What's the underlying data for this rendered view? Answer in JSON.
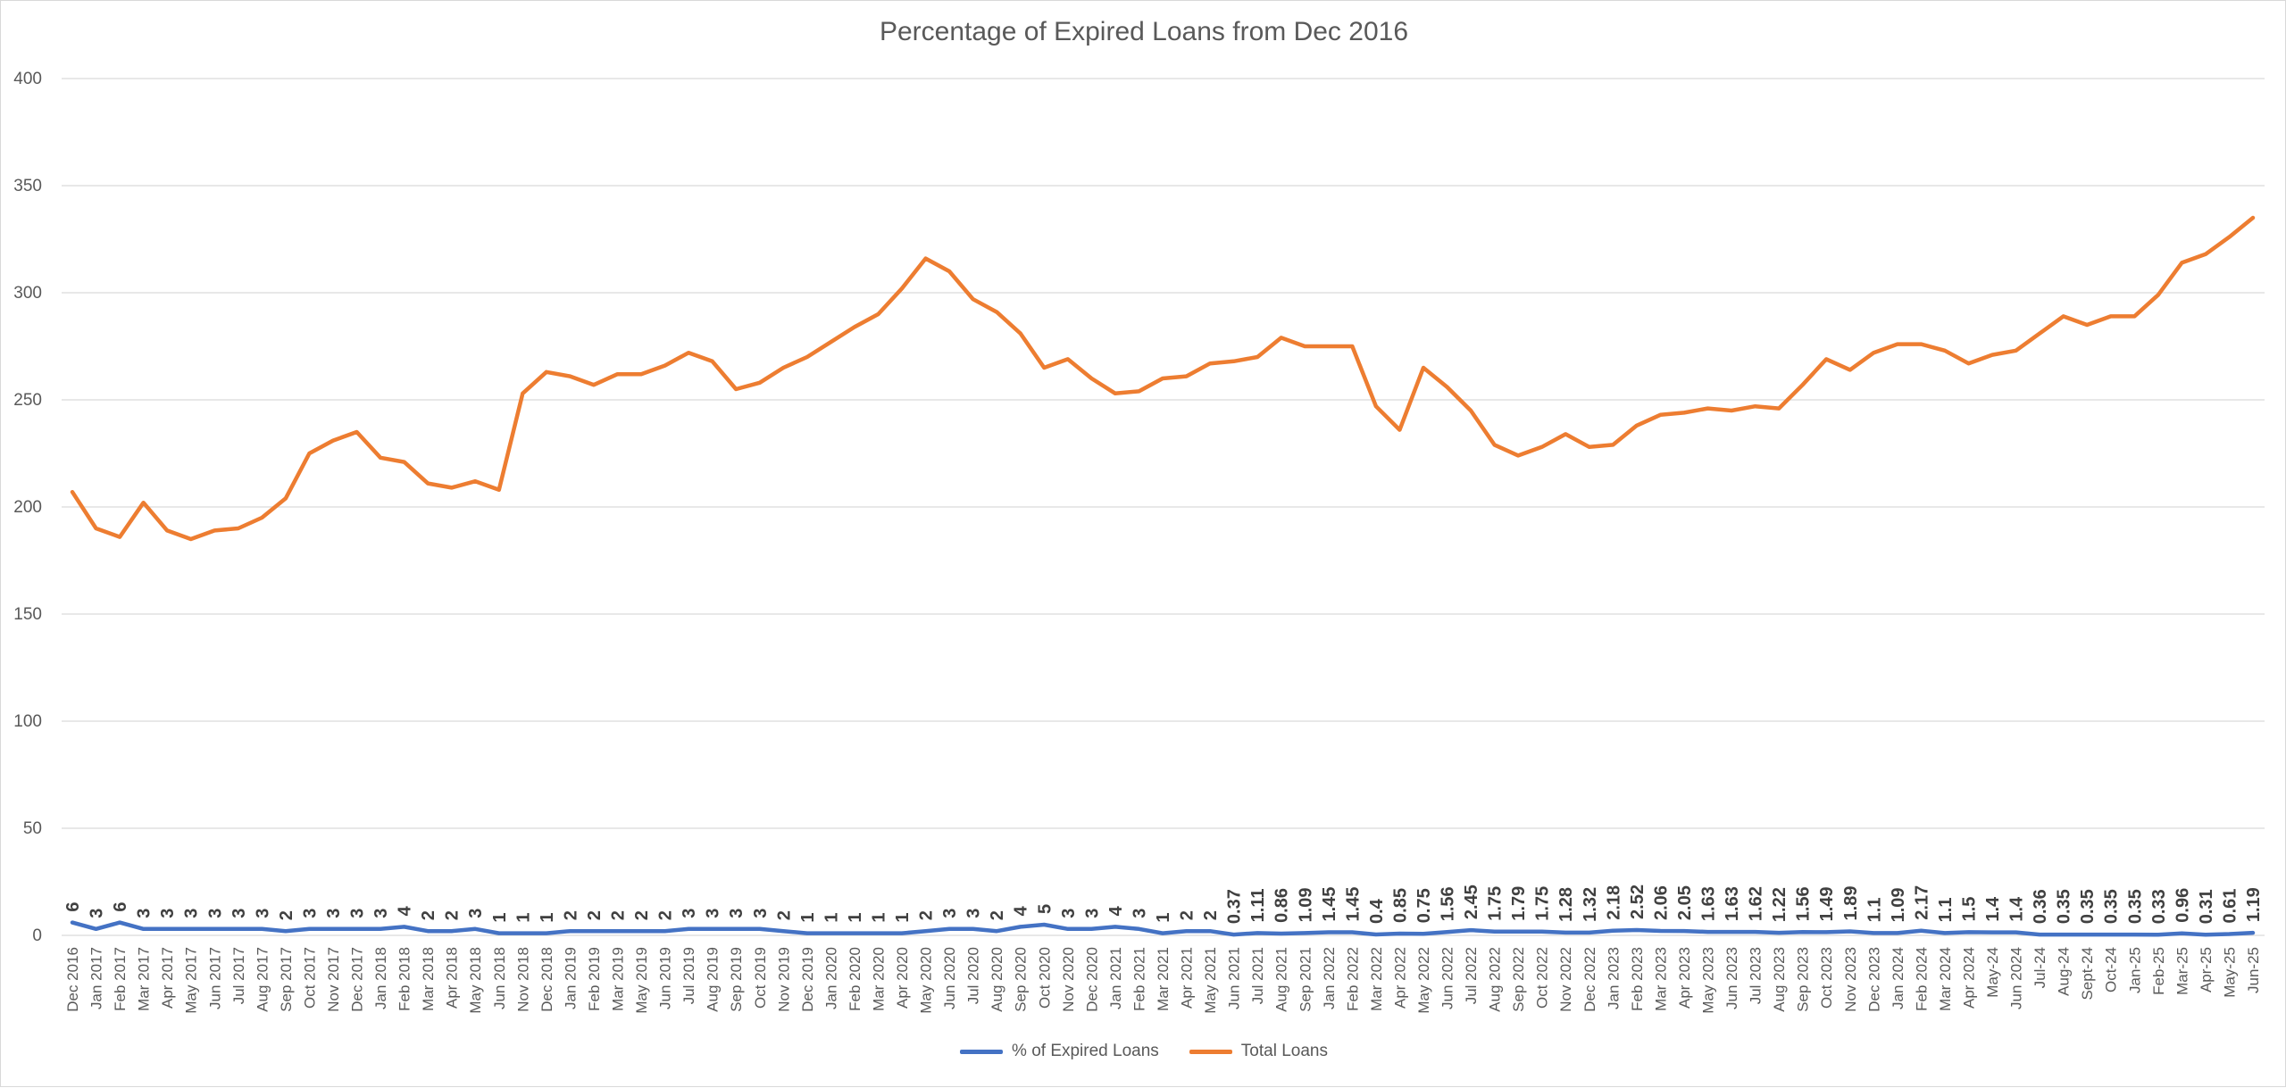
{
  "chart_data": {
    "type": "line",
    "title": "Percentage of Expired Loans from Dec 2016",
    "xlabel": "",
    "ylabel": "",
    "ylim": [
      0,
      400
    ],
    "yticks": [
      "0",
      "50",
      "100",
      "150",
      "200",
      "250",
      "300",
      "350",
      "400"
    ],
    "grid": true,
    "legend_position": "bottom",
    "colors": {
      "expired": "#4472C4",
      "total": "#ED7D31",
      "grid": "#d9d9d9",
      "text": "#595959"
    },
    "categories": [
      "Dec 2016",
      "Jan 2017",
      "Feb 2017",
      "Mar 2017",
      "Apr 2017",
      "May 2017",
      "Jun 2017",
      "Jul 2017",
      "Aug 2017",
      "Sep 2017",
      "Oct 2017",
      "Nov 2017",
      "Dec 2017",
      "Jan 2018",
      "Feb 2018",
      "Mar 2018",
      "Apr 2018",
      "May 2018",
      "Jun 2018",
      "Nov 2018",
      "Dec 2018",
      "Jan 2019",
      "Feb 2019",
      "Mar 2019",
      "May 2019",
      "Jun 2019",
      "Jul 2019",
      "Aug 2019",
      "Sep 2019",
      "Oct 2019",
      "Nov 2019",
      "Dec 2019",
      "Jan 2020",
      "Feb 2020",
      "Mar 2020",
      "Apr 2020",
      "May 2020",
      "Jun 2020",
      "Jul 2020",
      "Aug 2020",
      "Sep 2020",
      "Oct 2020",
      "Nov 2020",
      "Dec 2020",
      "Jan 2021",
      "Feb 2021",
      "Mar 2021",
      "Apr 2021",
      "May 2021",
      "Jun 2021",
      "Jul 2021",
      "Aug 2021",
      "Sep 2021",
      "Jan 2022",
      "Feb 2022",
      "Mar 2022",
      "Apr 2022",
      "May 2022",
      "Jun 2022",
      "Jul 2022",
      "Aug 2022",
      "Sep 2022",
      "Oct 2022",
      "Nov 2022",
      "Dec 2022",
      "Jan 2023",
      "Feb 2023",
      "Mar 2023",
      "Apr 2023",
      "May 2023",
      "Jun 2023",
      "Jul 2023",
      "Aug 2023",
      "Sep 2023",
      "Oct 2023",
      "Nov 2023",
      "Dec 2023",
      "Jan 2024",
      "Feb 2024",
      "Mar 2024",
      "Apr 2024",
      "May-24",
      "Jun 2024",
      "Jul-24",
      "Aug-24",
      "Sept-24",
      "Oct-24",
      "Jan-25",
      "Feb-25",
      "Mar-25",
      "Apr-25",
      "May-25",
      "Jun-25"
    ],
    "series": [
      {
        "name": "% of Expired Loans",
        "values": [
          6,
          3,
          6,
          3,
          3,
          3,
          3,
          3,
          3,
          2,
          3,
          3,
          3,
          3,
          4,
          2,
          2,
          3,
          1,
          1,
          1,
          2,
          2,
          2,
          2,
          2,
          3,
          3,
          3,
          3,
          2,
          1,
          1,
          1,
          1,
          1,
          2,
          3,
          3,
          2,
          4,
          5,
          3,
          3,
          4,
          3,
          1,
          2,
          2,
          0.37,
          1.11,
          0.86,
          1.09,
          1.45,
          1.45,
          0.4,
          0.85,
          0.75,
          1.56,
          2.45,
          1.75,
          1.79,
          1.75,
          1.28,
          1.32,
          2.18,
          2.52,
          2.06,
          2.05,
          1.63,
          1.63,
          1.62,
          1.22,
          1.56,
          1.49,
          1.89,
          1.1,
          1.09,
          2.17,
          1.1,
          1.5,
          1.4,
          1.4,
          0.36,
          0.35,
          0.35,
          0.35,
          0.35,
          0.33,
          0.96,
          0.31,
          0.61,
          1.19
        ],
        "labels": [
          "6",
          "3",
          "6",
          "3",
          "3",
          "3",
          "3",
          "3",
          "3",
          "2",
          "3",
          "3",
          "3",
          "3",
          "4",
          "2",
          "2",
          "3",
          "1",
          "1",
          "1",
          "2",
          "2",
          "2",
          "2",
          "2",
          "3",
          "3",
          "3",
          "3",
          "2",
          "1",
          "1",
          "1",
          "1",
          "1",
          "2",
          "3",
          "3",
          "2",
          "4",
          "5",
          "3",
          "3",
          "4",
          "3",
          "1",
          "2",
          "2",
          "0.37",
          "1.11",
          "0.86",
          "1.09",
          "1.45",
          "1.45",
          "0.4",
          "0.85",
          "0.75",
          "1.56",
          "2.45",
          "1.75",
          "1.79",
          "1.75",
          "1.28",
          "1.32",
          "2.18",
          "2.52",
          "2.06",
          "2.05",
          "1.63",
          "1.63",
          "1.62",
          "1.22",
          "1.56",
          "1.49",
          "1.89",
          "1.1",
          "1.09",
          "2.17",
          "1.1",
          "1.5",
          "1.4",
          "1.4",
          "0.36",
          "0.35",
          "0.35",
          "0.35",
          "0.35",
          "0.33",
          "0.96",
          "0.31",
          "0.61",
          "1.19"
        ]
      },
      {
        "name": "Total Loans",
        "values": [
          207,
          190,
          186,
          202,
          189,
          185,
          189,
          190,
          195,
          204,
          225,
          231,
          235,
          223,
          221,
          211,
          209,
          212,
          208,
          253,
          263,
          261,
          257,
          262,
          262,
          266,
          272,
          268,
          255,
          258,
          265,
          270,
          277,
          284,
          290,
          302,
          316,
          310,
          297,
          291,
          281,
          265,
          269,
          260,
          253,
          254,
          260,
          261,
          267,
          268,
          270,
          279,
          275,
          275,
          275,
          247,
          236,
          265,
          256,
          245,
          229,
          224,
          228,
          234,
          228,
          229,
          238,
          243,
          244,
          246,
          245,
          247,
          246,
          257,
          269,
          264,
          272,
          276,
          276,
          273,
          267,
          271,
          273,
          281,
          289,
          285,
          289,
          289,
          299,
          314,
          318,
          326,
          335
        ]
      }
    ]
  }
}
